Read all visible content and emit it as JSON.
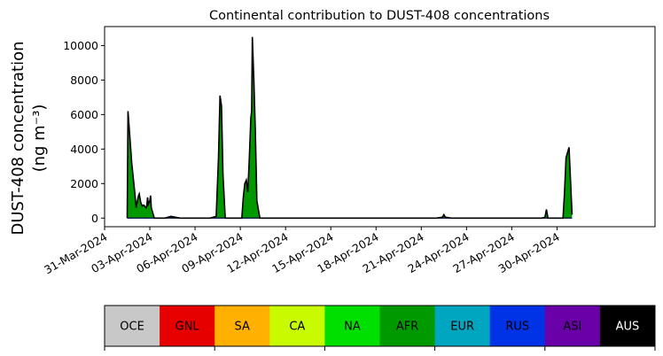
{
  "chart_data": {
    "type": "area",
    "title": "Continental contribution to DUST-408 concentrations",
    "ylabel_line1": "DUST-408 concentration",
    "ylabel_line2": "(ng m⁻³)",
    "xlabel": "",
    "ylim": [
      -500,
      11100
    ],
    "yticks": [
      0,
      2000,
      4000,
      6000,
      8000,
      10000
    ],
    "xlim_days": [
      0,
      36.5
    ],
    "xtick_labels": [
      "31-Mar-2024",
      "03-Apr-2024",
      "06-Apr-2024",
      "09-Apr-2024",
      "12-Apr-2024",
      "15-Apr-2024",
      "18-Apr-2024",
      "21-Apr-2024",
      "24-Apr-2024",
      "27-Apr-2024",
      "30-Apr-2024"
    ],
    "xtick_days": [
      0,
      3,
      6,
      9,
      12,
      15,
      18,
      21,
      24,
      27,
      30
    ],
    "x_day_zero": "31-Mar-2024",
    "dominant_series": "AFR",
    "series": [
      {
        "name": "AFR",
        "color": "#009a00",
        "x": [
          1.5,
          1.55,
          1.8,
          2.0,
          2.1,
          2.2,
          2.25,
          2.3,
          2.4,
          2.5,
          2.6,
          2.65,
          2.75,
          2.8,
          2.85,
          2.9,
          3.0,
          3.05,
          3.1,
          3.3,
          3.5,
          3.8,
          4.0,
          4.2,
          4.4,
          5.0,
          5.4,
          5.6,
          6.0,
          7.0,
          7.4,
          7.55,
          7.65,
          7.75,
          7.85,
          8.0,
          8.5,
          8.9,
          9.1,
          9.2,
          9.3,
          9.4,
          9.5,
          9.6,
          9.7,
          9.75,
          9.8,
          9.9,
          10.0,
          10.1,
          10.3,
          10.6,
          11.0,
          12.0,
          15.0,
          18.0,
          20.0,
          22.0,
          22.4,
          22.5,
          22.6,
          23.0,
          25.0,
          27.0,
          28.0,
          29.0,
          29.2,
          29.3,
          29.4,
          29.6,
          30.0,
          30.2,
          30.4,
          30.5,
          30.6,
          30.8,
          31.0
        ],
        "y": [
          0,
          6200,
          3200,
          1500,
          600,
          1100,
          1300,
          1400,
          900,
          700,
          750,
          700,
          600,
          700,
          1200,
          800,
          1000,
          1300,
          600,
          0,
          0,
          0,
          0,
          50,
          100,
          0,
          0,
          0,
          0,
          0,
          100,
          3500,
          7100,
          6500,
          2500,
          0,
          0,
          0,
          0,
          1200,
          2000,
          2200,
          1500,
          3500,
          5800,
          6200,
          10500,
          8000,
          5000,
          1000,
          0,
          0,
          0,
          0,
          0,
          0,
          0,
          0,
          50,
          200,
          50,
          0,
          0,
          0,
          0,
          0,
          50,
          500,
          0,
          0,
          0,
          0,
          0,
          1500,
          3500,
          4100,
          200
        ]
      }
    ],
    "legend": [
      {
        "name": "OCE",
        "color": "#c8c8c8",
        "text_color": "#000000"
      },
      {
        "name": "GNL",
        "color": "#e60000",
        "text_color": "#000000"
      },
      {
        "name": "SA",
        "color": "#ffb000",
        "text_color": "#000000"
      },
      {
        "name": "CA",
        "color": "#c8fa00",
        "text_color": "#000000"
      },
      {
        "name": "NA",
        "color": "#00e000",
        "text_color": "#000000"
      },
      {
        "name": "AFR",
        "color": "#009a00",
        "text_color": "#000000"
      },
      {
        "name": "EUR",
        "color": "#00a6c0",
        "text_color": "#000000"
      },
      {
        "name": "RUS",
        "color": "#0032e6",
        "text_color": "#000000"
      },
      {
        "name": "ASI",
        "color": "#6a00a8",
        "text_color": "#000000"
      },
      {
        "name": "AUS",
        "color": "#000000",
        "text_color": "#ffffff"
      }
    ],
    "grid": false
  }
}
